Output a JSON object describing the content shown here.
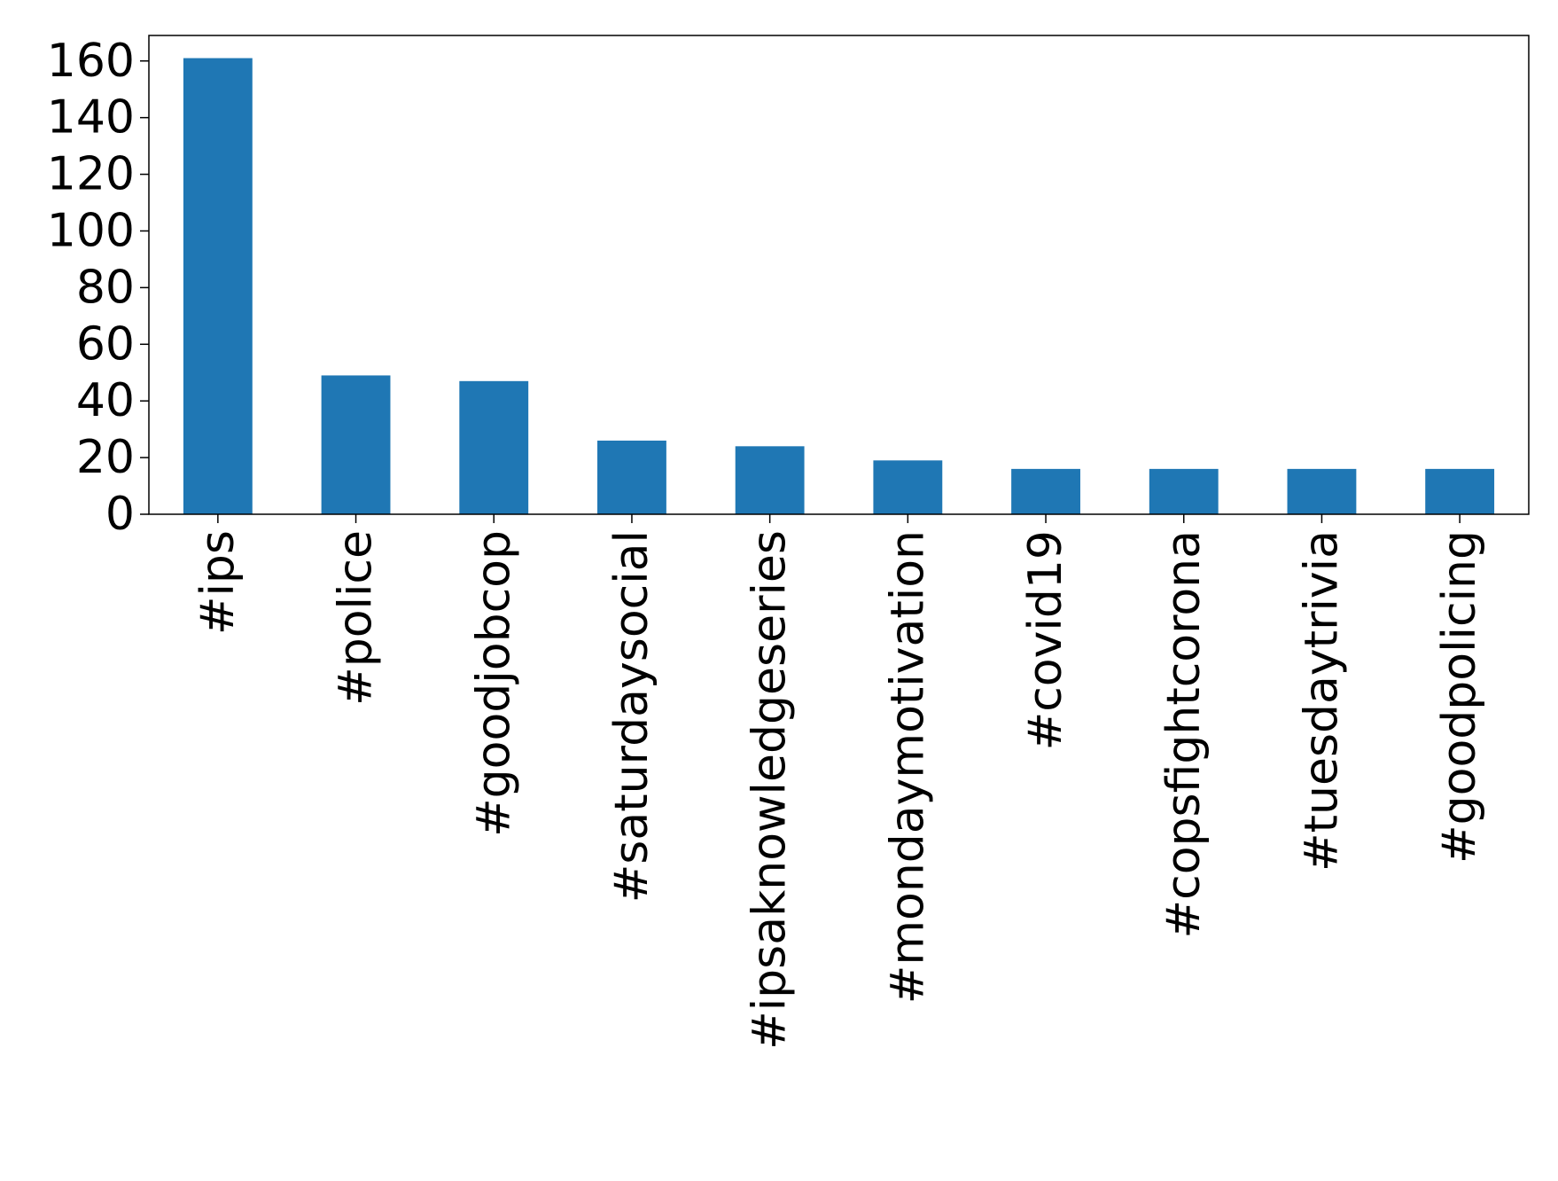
{
  "chart_data": {
    "type": "bar",
    "categories": [
      "#ips",
      "#police",
      "#goodjobcop",
      "#saturdaysocial",
      "#ipsaknowledgeseries",
      "#mondaymotivation",
      "#covid19",
      "#copsfightcorona",
      "#tuesdaytrivia",
      "#goodpolicing"
    ],
    "values": [
      161,
      49,
      47,
      26,
      24,
      19,
      16,
      16,
      16,
      16
    ],
    "title": "",
    "xlabel": "",
    "ylabel": "",
    "ylim": [
      0,
      169
    ],
    "yticks": [
      0,
      20,
      40,
      60,
      80,
      100,
      120,
      140,
      160
    ],
    "grid": false,
    "bar_color": "#1f77b4"
  }
}
